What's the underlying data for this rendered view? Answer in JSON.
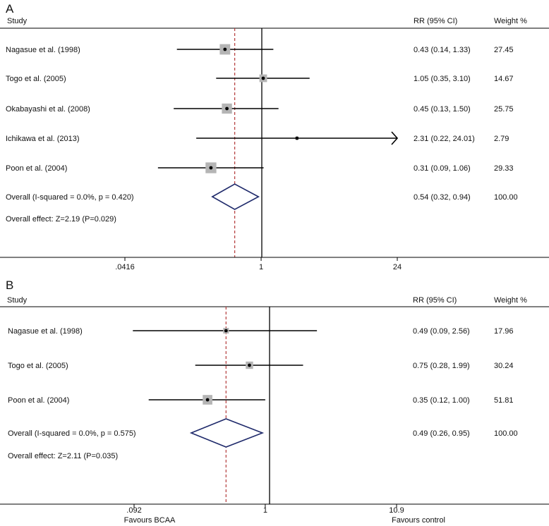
{
  "chart_data": [
    {
      "type": "forest",
      "panel_label": "A",
      "study_header": "Study",
      "effect_header": "RR (95% CI)",
      "weight_header": "Weight %",
      "x_ticks": [
        {
          "value": 0.0416,
          "label": ".0416"
        },
        {
          "value": 1,
          "label": "1"
        },
        {
          "value": 24,
          "label": "24"
        }
      ],
      "xlim": [
        0.0416,
        24
      ],
      "null_value": 1,
      "studies": [
        {
          "name": "Nagasue et al. (1998)",
          "rr": 0.43,
          "lo": 0.14,
          "hi": 1.33,
          "ci_text": "0.43 (0.14, 1.33)",
          "weight": 27.45,
          "weight_text": "27.45",
          "clipped_right": false
        },
        {
          "name": "Togo et al. (2005)",
          "rr": 1.05,
          "lo": 0.35,
          "hi": 3.1,
          "ci_text": "1.05 (0.35, 3.10)",
          "weight": 14.67,
          "weight_text": "14.67",
          "clipped_right": false
        },
        {
          "name": "Okabayashi et al. (2008)",
          "rr": 0.45,
          "lo": 0.13,
          "hi": 1.5,
          "ci_text": "0.45 (0.13, 1.50)",
          "weight": 25.75,
          "weight_text": "25.75",
          "clipped_right": false
        },
        {
          "name": "Ichikawa et al. (2013)",
          "rr": 2.31,
          "lo": 0.22,
          "hi": 24.01,
          "ci_text": "2.31 (0.22, 24.01)",
          "weight": 2.79,
          "weight_text": "2.79",
          "clipped_right": true
        },
        {
          "name": "Poon et al. (2004)",
          "rr": 0.31,
          "lo": 0.09,
          "hi": 1.06,
          "ci_text": "0.31 (0.09, 1.06)",
          "weight": 29.33,
          "weight_text": "29.33",
          "clipped_right": false
        }
      ],
      "overall": {
        "label": "Overall  (I-squared = 0.0%, p = 0.420)",
        "rr": 0.54,
        "lo": 0.32,
        "hi": 0.94,
        "ci_text": "0.54 (0.32, 0.94)",
        "weight_text": "100.00"
      },
      "overall_effect": "Overall effect: Z=2.19 (P=0.029)",
      "favours_left": "",
      "favours_right": ""
    },
    {
      "type": "forest",
      "panel_label": "B",
      "study_header": "Study",
      "effect_header": "RR (95% CI)",
      "weight_header": "Weight %",
      "x_ticks": [
        {
          "value": 0.092,
          "label": ".092"
        },
        {
          "value": 1,
          "label": "1"
        },
        {
          "value": 10.9,
          "label": "10.9"
        }
      ],
      "xlim": [
        0.092,
        10.9
      ],
      "null_value": 1,
      "studies": [
        {
          "name": "Nagasue et al. (1998)",
          "rr": 0.49,
          "lo": 0.09,
          "hi": 2.56,
          "ci_text": "0.49 (0.09, 2.56)",
          "weight": 17.96,
          "weight_text": "17.96",
          "clipped_right": false
        },
        {
          "name": "Togo et al. (2005)",
          "rr": 0.75,
          "lo": 0.28,
          "hi": 1.99,
          "ci_text": "0.75 (0.28, 1.99)",
          "weight": 30.24,
          "weight_text": "30.24",
          "clipped_right": false
        },
        {
          "name": "Poon et al. (2004)",
          "rr": 0.35,
          "lo": 0.12,
          "hi": 1.0,
          "ci_text": "0.35 (0.12, 1.00)",
          "weight": 51.81,
          "weight_text": "51.81",
          "clipped_right": false
        }
      ],
      "overall": {
        "label": "Overall  (I-squared = 0.0%, p = 0.575)",
        "rr": 0.49,
        "lo": 0.26,
        "hi": 0.95,
        "ci_text": "0.49 (0.26, 0.95)",
        "weight_text": "100.00"
      },
      "overall_effect": "Overall effect: Z=2.11 (P=0.035)",
      "favours_left": "Favours BCAA",
      "favours_right": "Favours control"
    }
  ]
}
